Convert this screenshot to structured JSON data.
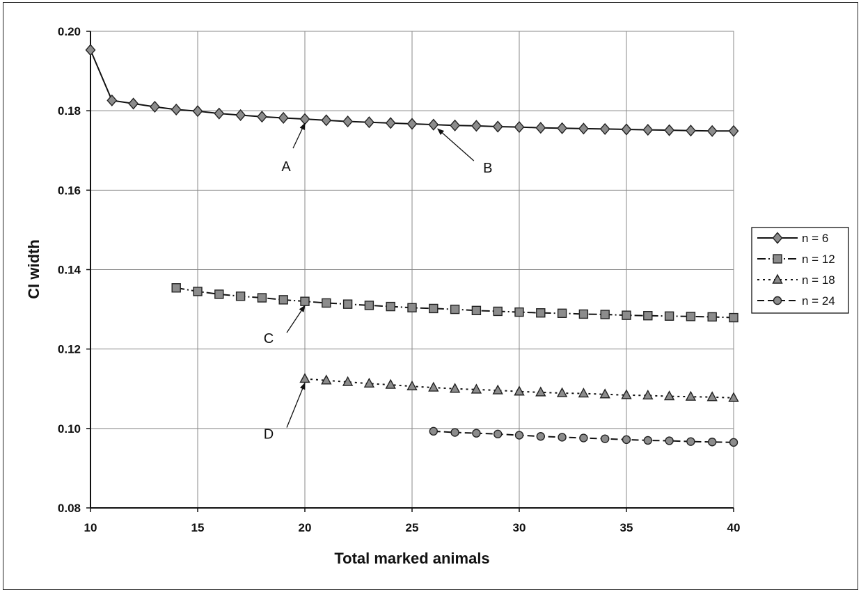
{
  "chart_data": {
    "type": "line",
    "title": "",
    "xlabel": "Total marked animals",
    "ylabel": "CI width",
    "xlim": [
      10,
      40
    ],
    "ylim": [
      0.08,
      0.2
    ],
    "x_ticks": [
      "10",
      "15",
      "20",
      "25",
      "30",
      "35",
      "40"
    ],
    "y_ticks": [
      "0.08",
      "0.10",
      "0.12",
      "0.14",
      "0.16",
      "0.18",
      "0.20"
    ],
    "grid": true,
    "legend_position": "right",
    "series": [
      {
        "name": "n = 6",
        "marker": "diamond",
        "line_style": "solid",
        "x": [
          10,
          11,
          12,
          13,
          14,
          15,
          16,
          17,
          18,
          19,
          20,
          21,
          22,
          23,
          24,
          25,
          26,
          27,
          28,
          29,
          30,
          31,
          32,
          33,
          34,
          35,
          36,
          37,
          38,
          39,
          40
        ],
        "y": [
          0.1953,
          0.1826,
          0.1818,
          0.181,
          0.1803,
          0.1799,
          0.1793,
          0.1789,
          0.1785,
          0.1782,
          0.1779,
          0.1776,
          0.1773,
          0.1771,
          0.1769,
          0.1767,
          0.1765,
          0.1763,
          0.1762,
          0.176,
          0.1759,
          0.1757,
          0.1756,
          0.1755,
          0.1754,
          0.1753,
          0.1752,
          0.1751,
          0.175,
          0.1749,
          0.1749
        ]
      },
      {
        "name": "n = 12",
        "marker": "square",
        "line_style": "dash-dot",
        "x": [
          14,
          15,
          16,
          17,
          18,
          19,
          20,
          21,
          22,
          23,
          24,
          25,
          26,
          27,
          28,
          29,
          30,
          31,
          32,
          33,
          34,
          35,
          36,
          37,
          38,
          39,
          40
        ],
        "y": [
          0.1354,
          0.1345,
          0.1338,
          0.1333,
          0.1329,
          0.1324,
          0.132,
          0.1316,
          0.1313,
          0.131,
          0.1307,
          0.1304,
          0.1302,
          0.13,
          0.1297,
          0.1295,
          0.1293,
          0.1291,
          0.129,
          0.1288,
          0.1287,
          0.1285,
          0.1284,
          0.1283,
          0.1282,
          0.1281,
          0.1279
        ]
      },
      {
        "name": "n = 18",
        "marker": "triangle",
        "line_style": "dotted",
        "x": [
          20,
          21,
          22,
          23,
          24,
          25,
          26,
          27,
          28,
          29,
          30,
          31,
          32,
          33,
          34,
          35,
          36,
          37,
          38,
          39,
          40
        ],
        "y": [
          0.1125,
          0.1121,
          0.1117,
          0.1113,
          0.111,
          0.1106,
          0.1103,
          0.11,
          0.1098,
          0.1096,
          0.1093,
          0.1091,
          0.1089,
          0.1088,
          0.1086,
          0.1084,
          0.1083,
          0.1081,
          0.108,
          0.1079,
          0.1077
        ]
      },
      {
        "name": "n = 24",
        "marker": "circle",
        "line_style": "dashed",
        "x": [
          26,
          27,
          28,
          29,
          30,
          31,
          32,
          33,
          34,
          35,
          36,
          37,
          38,
          39,
          40
        ],
        "y": [
          0.0993,
          0.099,
          0.0988,
          0.0986,
          0.0983,
          0.098,
          0.0978,
          0.0976,
          0.0974,
          0.0972,
          0.097,
          0.0969,
          0.0967,
          0.0966,
          0.0965
        ]
      }
    ],
    "annotations": [
      {
        "label": "A",
        "points_to": [
          20,
          0.1779
        ]
      },
      {
        "label": "B",
        "points_to": [
          26,
          0.1765
        ]
      },
      {
        "label": "C",
        "points_to": [
          20,
          0.132
        ]
      },
      {
        "label": "D",
        "points_to": [
          20,
          0.1125
        ]
      }
    ]
  },
  "colors": {
    "marker_fill": "#8c8c8c",
    "marker_stroke": "#222222",
    "line": "#111111",
    "grid": "#888888",
    "background": "#ffffff"
  }
}
